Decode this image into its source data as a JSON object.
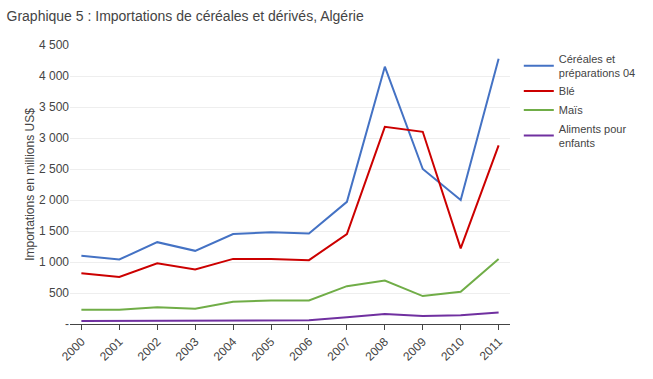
{
  "chart_data": {
    "type": "line",
    "title": "Graphique 5 : Importations de céréales et dérivés, Algérie",
    "y_label": "Importations en millions US$",
    "x": [
      2000,
      2001,
      2002,
      2003,
      2004,
      2005,
      2006,
      2007,
      2008,
      2009,
      2010,
      2011
    ],
    "series": [
      {
        "name": "Céréales et\npréparations 04",
        "color": "#4472C4",
        "values": [
          1100,
          1040,
          1320,
          1180,
          1450,
          1480,
          1460,
          1970,
          4150,
          2500,
          2000,
          4280
        ]
      },
      {
        "name": "Blé",
        "color": "#CC0000",
        "values": [
          820,
          760,
          980,
          880,
          1050,
          1050,
          1030,
          1450,
          3180,
          3100,
          1220,
          2880
        ]
      },
      {
        "name": "Maïs",
        "color": "#70AD47",
        "values": [
          230,
          230,
          270,
          245,
          360,
          380,
          380,
          610,
          700,
          450,
          520,
          1050
        ]
      },
      {
        "name": "Aliments pour\nenfants",
        "color": "#7030A0",
        "values": [
          50,
          50,
          55,
          50,
          55,
          55,
          60,
          110,
          160,
          130,
          140,
          185
        ]
      }
    ],
    "xlim": [
      1999.7,
      2011.3
    ],
    "xticks": [
      2000,
      2001,
      2002,
      2003,
      2004,
      2005,
      2006,
      2007,
      2008,
      2009,
      2010,
      2011
    ],
    "ylim": [
      0,
      4500
    ],
    "yticks": [
      {
        "value": 0,
        "label": "-"
      },
      500,
      {
        "value": 1000,
        "label": "1 000"
      },
      {
        "value": 1500,
        "label": "1 500"
      },
      {
        "value": 2000,
        "label": "2 000"
      },
      {
        "value": 2500,
        "label": "2 500"
      },
      {
        "value": 3000,
        "label": "3 000"
      },
      {
        "value": 3500,
        "label": "3 500"
      },
      {
        "value": 4000,
        "label": "4 000"
      },
      {
        "value": 4500,
        "label": "4 500"
      }
    ],
    "grid": "y",
    "legend": "right"
  }
}
